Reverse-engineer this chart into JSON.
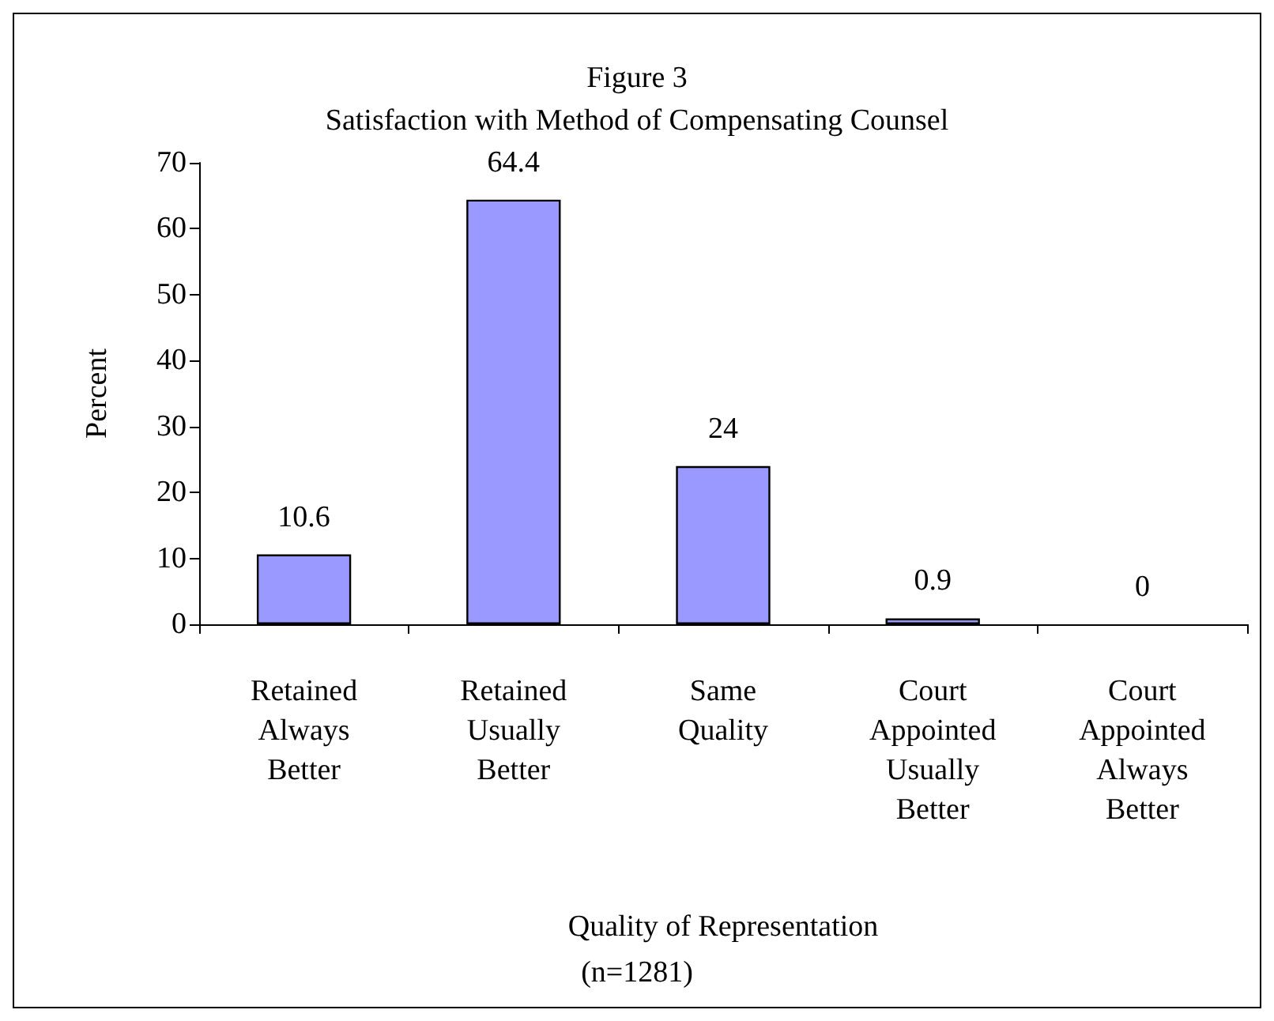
{
  "chart_data": {
    "type": "bar",
    "title": "Figure 3",
    "subtitle": "Satisfaction with Method of Compensating Counsel",
    "xlabel": "Quality of Representation",
    "ylabel": "Percent",
    "annotations": [
      "(n=1281)"
    ],
    "categories": [
      "Retained\nAlways\nBetter",
      "Retained\nUsually\nBetter",
      "Same\nQuality",
      "Court\nAppointed\nUsually\nBetter",
      "Court\nAppointed\nAlways\nBetter"
    ],
    "values": [
      10.6,
      64.4,
      24,
      0.9,
      0
    ],
    "color": "#9999ff",
    "ylim": [
      0,
      70
    ],
    "yticks": [
      0,
      10,
      20,
      30,
      40,
      50,
      60,
      70
    ],
    "grid": false,
    "data_labels": true
  }
}
